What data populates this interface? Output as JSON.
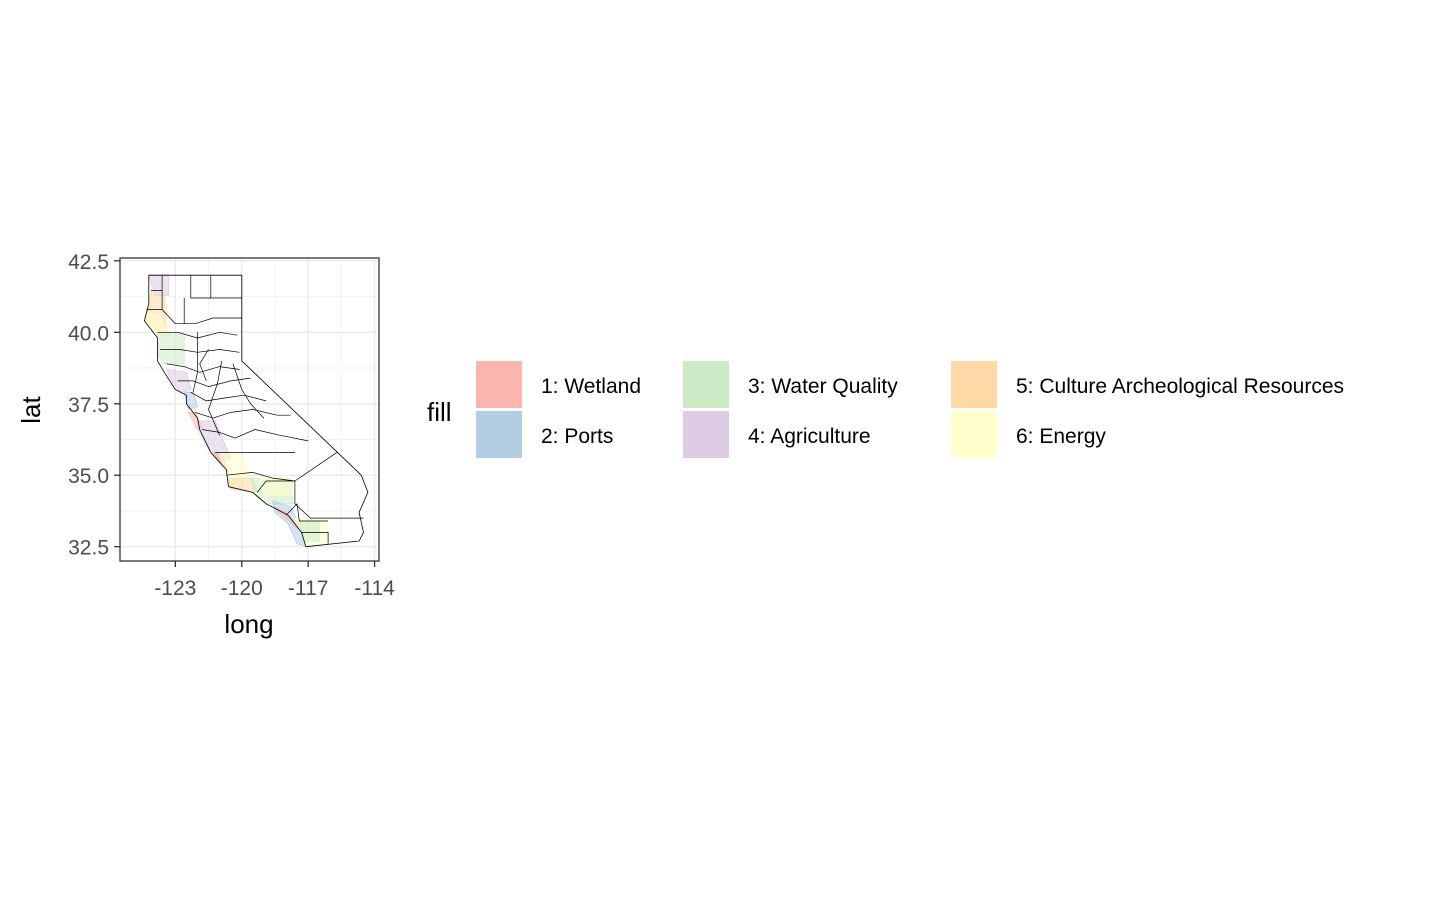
{
  "chart_data": {
    "type": "map",
    "xlabel": "long",
    "ylabel": "lat",
    "xlim": [
      -125.5,
      -113.8
    ],
    "ylim": [
      32.0,
      42.6
    ],
    "x_ticks": [
      {
        "value": -123,
        "label": "-123"
      },
      {
        "value": -120,
        "label": "-120"
      },
      {
        "value": -117,
        "label": "-117"
      },
      {
        "value": -114,
        "label": "-114"
      }
    ],
    "y_ticks": [
      {
        "value": 42.5,
        "label": "42.5"
      },
      {
        "value": 40.0,
        "label": "40.0"
      },
      {
        "value": 37.5,
        "label": "37.5"
      },
      {
        "value": 35.0,
        "label": "35.0"
      },
      {
        "value": 32.5,
        "label": "32.5"
      }
    ],
    "grid": true,
    "legend": {
      "title": "fill",
      "placement": "right",
      "entries": [
        {
          "label": "1: Wetland",
          "color": "#FBB4AE"
        },
        {
          "label": "2: Ports",
          "color": "#B3CDE3"
        },
        {
          "label": "3: Water Quality",
          "color": "#CCEBC5"
        },
        {
          "label": "4: Agriculture",
          "color": "#DECBE4"
        },
        {
          "label": "5: Culture Archeological Resources",
          "color": "#FED9A6"
        },
        {
          "label": "6: Energy",
          "color": "#FFFFCC"
        }
      ]
    },
    "state_outline": [
      [
        -124.2,
        42.0
      ],
      [
        -120.0,
        42.0
      ],
      [
        -120.0,
        39.0
      ],
      [
        -114.6,
        35.0
      ],
      [
        -114.3,
        34.4
      ],
      [
        -114.7,
        33.7
      ],
      [
        -114.5,
        33.0
      ],
      [
        -114.7,
        32.7
      ],
      [
        -117.1,
        32.5
      ],
      [
        -117.3,
        33.0
      ],
      [
        -117.9,
        33.6
      ],
      [
        -118.4,
        33.8
      ],
      [
        -118.9,
        34.0
      ],
      [
        -119.5,
        34.4
      ],
      [
        -120.6,
        34.6
      ],
      [
        -120.7,
        35.2
      ],
      [
        -121.4,
        35.8
      ],
      [
        -121.9,
        36.6
      ],
      [
        -122.0,
        37.0
      ],
      [
        -122.5,
        37.5
      ],
      [
        -122.5,
        37.8
      ],
      [
        -123.0,
        38.0
      ],
      [
        -123.5,
        38.6
      ],
      [
        -123.8,
        39.0
      ],
      [
        -123.8,
        39.8
      ],
      [
        -124.4,
        40.4
      ],
      [
        -124.2,
        41.0
      ],
      [
        -124.2,
        42.0
      ]
    ],
    "county_lines": [
      [
        [
          -124.1,
          41.46
        ],
        [
          -123.6,
          41.46
        ],
        [
          -123.6,
          42.0
        ]
      ],
      [
        [
          -122.3,
          42.0
        ],
        [
          -122.3,
          41.2
        ],
        [
          -121.4,
          41.2
        ],
        [
          -121.4,
          42.0
        ]
      ],
      [
        [
          -121.4,
          41.2
        ],
        [
          -120.0,
          41.2
        ]
      ],
      [
        [
          -124.3,
          40.8
        ],
        [
          -123.6,
          40.8
        ],
        [
          -123.0,
          40.3
        ],
        [
          -122.1,
          40.3
        ],
        [
          -121.3,
          40.5
        ],
        [
          -120.0,
          40.5
        ]
      ],
      [
        [
          -123.6,
          41.46
        ],
        [
          -123.6,
          40.8
        ]
      ],
      [
        [
          -122.6,
          41.2
        ],
        [
          -122.6,
          40.3
        ]
      ],
      [
        [
          -123.8,
          40.0
        ],
        [
          -122.9,
          40.0
        ],
        [
          -122.0,
          39.8
        ],
        [
          -121.0,
          40.0
        ],
        [
          -120.2,
          39.9
        ]
      ],
      [
        [
          -123.7,
          39.4
        ],
        [
          -122.8,
          39.4
        ],
        [
          -122.0,
          39.3
        ],
        [
          -121.0,
          39.4
        ],
        [
          -120.1,
          39.3
        ]
      ],
      [
        [
          -123.4,
          38.9
        ],
        [
          -122.6,
          38.8
        ],
        [
          -121.9,
          38.6
        ],
        [
          -121.0,
          38.8
        ],
        [
          -120.1,
          38.7
        ]
      ],
      [
        [
          -122.9,
          38.3
        ],
        [
          -122.2,
          38.3
        ],
        [
          -121.5,
          38.1
        ],
        [
          -120.5,
          38.3
        ],
        [
          -119.6,
          38.4
        ]
      ],
      [
        [
          -122.3,
          37.9
        ],
        [
          -121.6,
          37.6
        ],
        [
          -120.8,
          37.7
        ],
        [
          -119.9,
          37.8
        ],
        [
          -118.9,
          37.6
        ]
      ],
      [
        [
          -122.1,
          37.2
        ],
        [
          -121.3,
          37.0
        ],
        [
          -120.5,
          37.2
        ],
        [
          -119.5,
          37.3
        ],
        [
          -118.4,
          37.1
        ],
        [
          -117.8,
          37.1
        ]
      ],
      [
        [
          -121.8,
          36.6
        ],
        [
          -121.0,
          36.5
        ],
        [
          -120.3,
          36.3
        ],
        [
          -119.4,
          36.6
        ],
        [
          -118.3,
          36.4
        ],
        [
          -117.0,
          36.2
        ]
      ],
      [
        [
          -121.2,
          35.8
        ],
        [
          -120.2,
          35.8
        ],
        [
          -119.5,
          35.8
        ],
        [
          -118.4,
          35.8
        ],
        [
          -117.6,
          35.8
        ]
      ],
      [
        [
          -120.7,
          35.0
        ],
        [
          -119.5,
          35.1
        ],
        [
          -118.6,
          34.9
        ],
        [
          -117.6,
          34.8
        ],
        [
          -115.7,
          35.8
        ]
      ],
      [
        [
          -119.3,
          34.4
        ],
        [
          -118.9,
          34.8
        ],
        [
          -117.6,
          34.8
        ],
        [
          -117.6,
          34.0
        ],
        [
          -116.9,
          33.5
        ],
        [
          -114.5,
          33.5
        ]
      ],
      [
        [
          -118.0,
          33.6
        ],
        [
          -117.5,
          34.0
        ],
        [
          -117.4,
          33.4
        ],
        [
          -116.1,
          33.4
        ]
      ],
      [
        [
          -117.3,
          33.0
        ],
        [
          -116.1,
          33.0
        ],
        [
          -116.1,
          32.6
        ]
      ],
      [
        [
          -120.9,
          39.0
        ],
        [
          -121.1,
          38.2
        ],
        [
          -121.5,
          37.3
        ],
        [
          -121.0,
          36.4
        ]
      ],
      [
        [
          -122.0,
          40.0
        ],
        [
          -122.0,
          38.6
        ],
        [
          -122.2,
          37.9
        ]
      ],
      [
        [
          -120.4,
          38.9
        ],
        [
          -120.0,
          38.0
        ],
        [
          -119.6,
          37.5
        ],
        [
          -119.0,
          37.0
        ]
      ],
      [
        [
          -121.5,
          39.4
        ],
        [
          -121.9,
          38.9
        ],
        [
          -121.6,
          38.3
        ]
      ]
    ],
    "regions": [
      {
        "category": 4,
        "points": [
          [
            -124.2,
            42.0
          ],
          [
            -123.3,
            42.0
          ],
          [
            -123.3,
            41.3
          ],
          [
            -123.9,
            41.3
          ],
          [
            -124.1,
            41.7
          ]
        ]
      },
      {
        "category": 5,
        "points": [
          [
            -124.1,
            41.4
          ],
          [
            -123.5,
            41.3
          ],
          [
            -123.4,
            40.0
          ],
          [
            -123.8,
            40.0
          ],
          [
            -124.4,
            40.5
          ],
          [
            -124.2,
            41.0
          ]
        ]
      },
      {
        "category": 6,
        "points": [
          [
            -124.4,
            40.6
          ],
          [
            -123.7,
            40.6
          ],
          [
            -123.3,
            39.9
          ],
          [
            -123.7,
            39.8
          ],
          [
            -124.3,
            40.3
          ]
        ]
      },
      {
        "category": 3,
        "points": [
          [
            -123.8,
            40.0
          ],
          [
            -122.6,
            40.0
          ],
          [
            -122.6,
            38.9
          ],
          [
            -123.5,
            38.9
          ],
          [
            -123.8,
            39.2
          ]
        ]
      },
      {
        "category": 4,
        "points": [
          [
            -123.4,
            38.7
          ],
          [
            -122.5,
            38.6
          ],
          [
            -122.3,
            38.0
          ],
          [
            -122.7,
            37.9
          ],
          [
            -123.1,
            38.2
          ]
        ]
      },
      {
        "category": 2,
        "points": [
          [
            -122.6,
            37.9
          ],
          [
            -122.2,
            37.9
          ],
          [
            -122.0,
            37.4
          ],
          [
            -122.4,
            37.3
          ],
          [
            -122.5,
            37.6
          ]
        ]
      },
      {
        "category": 1,
        "points": [
          [
            -122.4,
            37.2
          ],
          [
            -122.1,
            37.2
          ],
          [
            -121.8,
            36.7
          ],
          [
            -122.0,
            36.6
          ]
        ]
      },
      {
        "category": 4,
        "points": [
          [
            -122.0,
            36.9
          ],
          [
            -121.2,
            36.9
          ],
          [
            -120.5,
            35.6
          ],
          [
            -121.0,
            35.4
          ],
          [
            -121.5,
            35.9
          ],
          [
            -121.9,
            36.5
          ]
        ]
      },
      {
        "category": 1,
        "points": [
          [
            -121.3,
            35.8
          ],
          [
            -120.9,
            35.7
          ],
          [
            -120.6,
            35.1
          ],
          [
            -120.8,
            35.2
          ]
        ]
      },
      {
        "category": 6,
        "points": [
          [
            -121.0,
            35.8
          ],
          [
            -120.2,
            35.8
          ],
          [
            -119.6,
            35.0
          ],
          [
            -120.3,
            34.6
          ],
          [
            -120.7,
            34.9
          ]
        ]
      },
      {
        "category": 5,
        "points": [
          [
            -120.6,
            34.9
          ],
          [
            -119.5,
            34.9
          ],
          [
            -119.3,
            34.4
          ],
          [
            -120.5,
            34.5
          ]
        ]
      },
      {
        "category": 3,
        "points": [
          [
            -119.6,
            34.9
          ],
          [
            -117.7,
            34.9
          ],
          [
            -117.7,
            34.0
          ],
          [
            -118.9,
            34.0
          ],
          [
            -119.4,
            34.3
          ]
        ]
      },
      {
        "category": 6,
        "points": [
          [
            -119.2,
            34.9
          ],
          [
            -117.7,
            34.9
          ],
          [
            -117.7,
            34.3
          ],
          [
            -119.0,
            34.3
          ]
        ]
      },
      {
        "category": 2,
        "points": [
          [
            -118.6,
            34.1
          ],
          [
            -117.8,
            33.9
          ],
          [
            -117.3,
            33.1
          ],
          [
            -117.1,
            32.5
          ],
          [
            -117.5,
            32.6
          ],
          [
            -117.9,
            33.3
          ],
          [
            -118.5,
            33.7
          ]
        ]
      },
      {
        "category": 1,
        "points": [
          [
            -118.5,
            33.9
          ],
          [
            -118.0,
            33.7
          ],
          [
            -117.4,
            33.1
          ],
          [
            -117.6,
            33.2
          ],
          [
            -118.3,
            33.7
          ]
        ]
      },
      {
        "category": 6,
        "points": [
          [
            -117.6,
            33.5
          ],
          [
            -116.1,
            33.5
          ],
          [
            -116.1,
            32.6
          ],
          [
            -117.1,
            32.5
          ],
          [
            -117.3,
            33.0
          ]
        ]
      },
      {
        "category": 3,
        "points": [
          [
            -117.4,
            33.4
          ],
          [
            -116.5,
            33.4
          ],
          [
            -116.5,
            32.7
          ],
          [
            -117.2,
            32.7
          ]
        ]
      }
    ]
  }
}
